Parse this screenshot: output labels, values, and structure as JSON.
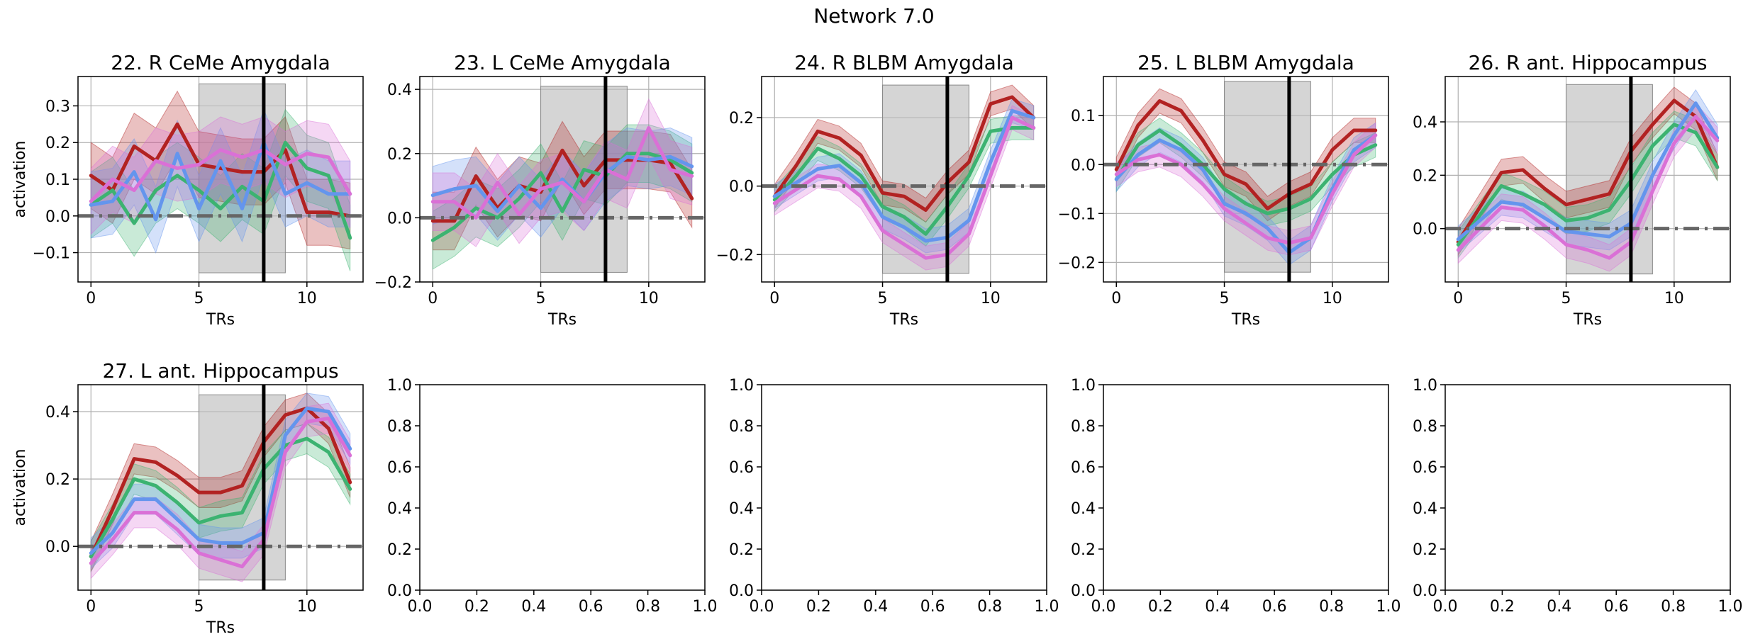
{
  "figure": {
    "title": "Network 7.0",
    "colors": {
      "series": [
        "#b22222",
        "#3cb371",
        "#6495ed",
        "#da70d6"
      ],
      "stim_shade": "#bfbfbf",
      "zero_line": "#666666",
      "marker_line": "#000000",
      "grid": "#b0b0b0"
    }
  },
  "chart_data": [
    {
      "type": "line",
      "title": "22. R CeMe Amygdala",
      "xlabel": "TRs",
      "ylabel": "activation",
      "xlim": [
        -0.6,
        12.6
      ],
      "ylim": [
        -0.18,
        0.38
      ],
      "xticks": [
        0,
        5,
        10
      ],
      "yticks": [
        -0.1,
        0.0,
        0.1,
        0.2,
        0.3
      ],
      "ytick_labels": [
        "−0.1",
        "0.0",
        "0.1",
        "0.2",
        "0.3"
      ],
      "shade_x": [
        5,
        9
      ],
      "shade_y": [
        -0.155,
        0.36
      ],
      "marker_x": 8,
      "zero_y": 0,
      "grid": true,
      "x": [
        0,
        1,
        2,
        3,
        4,
        5,
        6,
        7,
        8,
        9,
        10,
        11,
        12
      ],
      "series": [
        {
          "values": [
            0.11,
            0.07,
            0.19,
            0.15,
            0.25,
            0.14,
            0.13,
            0.12,
            0.12,
            0.18,
            0.01,
            0.01,
            0.0
          ],
          "band": 0.09
        },
        {
          "values": [
            0.03,
            0.07,
            -0.02,
            0.07,
            0.11,
            0.07,
            0.02,
            0.08,
            0.04,
            0.2,
            0.13,
            0.11,
            -0.06
          ],
          "band": 0.09
        },
        {
          "values": [
            0.03,
            0.04,
            0.12,
            -0.01,
            0.17,
            0.02,
            0.15,
            0.02,
            0.2,
            0.06,
            0.09,
            0.06,
            0.06
          ],
          "band": 0.09
        },
        {
          "values": [
            0.04,
            0.1,
            0.07,
            0.15,
            0.13,
            0.14,
            0.18,
            0.16,
            0.18,
            0.14,
            0.17,
            0.16,
            0.06
          ],
          "band": 0.09
        }
      ]
    },
    {
      "type": "line",
      "title": "23. L CeMe Amygdala",
      "xlabel": "TRs",
      "ylabel": "",
      "xlim": [
        -0.6,
        12.6
      ],
      "ylim": [
        -0.2,
        0.44
      ],
      "xticks": [
        0,
        5,
        10
      ],
      "yticks": [
        -0.2,
        0.0,
        0.2,
        0.4
      ],
      "ytick_labels": [
        "−0.2",
        "0.0",
        "0.2",
        "0.4"
      ],
      "shade_x": [
        5,
        9
      ],
      "shade_y": [
        -0.17,
        0.41
      ],
      "marker_x": 8,
      "zero_y": 0,
      "grid": true,
      "x": [
        0,
        1,
        2,
        3,
        4,
        5,
        6,
        7,
        8,
        9,
        10,
        11,
        12
      ],
      "series": [
        {
          "values": [
            -0.01,
            -0.01,
            0.13,
            0.03,
            0.1,
            0.08,
            0.21,
            0.1,
            0.18,
            0.18,
            0.18,
            0.17,
            0.06
          ],
          "band": 0.09
        },
        {
          "values": [
            -0.07,
            -0.03,
            0.03,
            0.0,
            0.06,
            0.14,
            0.02,
            0.15,
            0.13,
            0.2,
            0.2,
            0.18,
            0.14
          ],
          "band": 0.09
        },
        {
          "values": [
            0.07,
            0.09,
            0.1,
            0.02,
            0.1,
            0.03,
            0.12,
            0.05,
            0.14,
            0.19,
            0.18,
            0.19,
            0.16
          ],
          "band": 0.09
        },
        {
          "values": [
            0.05,
            0.05,
            0.0,
            0.11,
            0.01,
            0.09,
            0.11,
            0.05,
            0.15,
            0.12,
            0.28,
            0.15,
            0.13
          ],
          "band": 0.09
        }
      ]
    },
    {
      "type": "line",
      "title": "24. R BLBM Amygdala",
      "xlabel": "TRs",
      "ylabel": "",
      "xlim": [
        -0.6,
        12.6
      ],
      "ylim": [
        -0.28,
        0.32
      ],
      "xticks": [
        0,
        5,
        10
      ],
      "yticks": [
        -0.2,
        0.0,
        0.2
      ],
      "ytick_labels": [
        "−0.2",
        "0.0",
        "0.2"
      ],
      "shade_x": [
        5,
        9
      ],
      "shade_y": [
        -0.255,
        0.295
      ],
      "marker_x": 8,
      "zero_y": 0,
      "grid": true,
      "x": [
        0,
        1,
        2,
        3,
        4,
        5,
        6,
        7,
        8,
        9,
        10,
        11,
        12
      ],
      "series": [
        {
          "values": [
            -0.03,
            0.06,
            0.16,
            0.14,
            0.09,
            -0.02,
            -0.03,
            -0.07,
            0.01,
            0.07,
            0.24,
            0.26,
            0.2
          ],
          "band": 0.035
        },
        {
          "values": [
            -0.04,
            0.03,
            0.11,
            0.08,
            0.03,
            -0.06,
            -0.09,
            -0.14,
            -0.06,
            0.03,
            0.16,
            0.17,
            0.17
          ],
          "band": 0.035
        },
        {
          "values": [
            -0.03,
            0.01,
            0.05,
            0.06,
            0.01,
            -0.09,
            -0.12,
            -0.16,
            -0.15,
            -0.1,
            0.07,
            0.22,
            0.2
          ],
          "band": 0.035
        },
        {
          "values": [
            -0.05,
            -0.01,
            0.03,
            0.02,
            -0.03,
            -0.13,
            -0.17,
            -0.21,
            -0.2,
            -0.14,
            0.03,
            0.2,
            0.17
          ],
          "band": 0.035
        }
      ]
    },
    {
      "type": "line",
      "title": "25. L BLBM Amygdala",
      "xlabel": "TRs",
      "ylabel": "",
      "xlim": [
        -0.6,
        12.6
      ],
      "ylim": [
        -0.24,
        0.18
      ],
      "xticks": [
        0,
        5,
        10
      ],
      "yticks": [
        -0.2,
        -0.1,
        0.0,
        0.1
      ],
      "ytick_labels": [
        "−0.2",
        "−0.1",
        "0.0",
        "0.1"
      ],
      "shade_x": [
        5,
        9
      ],
      "shade_y": [
        -0.22,
        0.17
      ],
      "marker_x": 8,
      "zero_y": 0,
      "grid": true,
      "x": [
        0,
        1,
        2,
        3,
        4,
        5,
        6,
        7,
        8,
        9,
        10,
        11,
        12
      ],
      "series": [
        {
          "values": [
            -0.01,
            0.08,
            0.13,
            0.11,
            0.05,
            -0.02,
            -0.04,
            -0.09,
            -0.06,
            -0.04,
            0.03,
            0.07,
            0.07
          ],
          "band": 0.025
        },
        {
          "values": [
            -0.03,
            0.04,
            0.07,
            0.04,
            0.0,
            -0.05,
            -0.08,
            -0.1,
            -0.09,
            -0.07,
            -0.02,
            0.02,
            0.04
          ],
          "band": 0.025
        },
        {
          "values": [
            -0.03,
            0.02,
            0.05,
            0.03,
            -0.01,
            -0.08,
            -0.1,
            -0.13,
            -0.18,
            -0.15,
            -0.05,
            0.03,
            0.06
          ],
          "band": 0.025
        },
        {
          "values": [
            -0.02,
            0.01,
            0.02,
            0.0,
            -0.04,
            -0.09,
            -0.12,
            -0.15,
            -0.16,
            -0.15,
            -0.06,
            0.02,
            0.06
          ],
          "band": 0.025
        }
      ]
    },
    {
      "type": "line",
      "title": "26. R ant. Hippocampus",
      "xlabel": "TRs",
      "ylabel": "",
      "xlim": [
        -0.6,
        12.6
      ],
      "ylim": [
        -0.2,
        0.57
      ],
      "xticks": [
        0,
        5,
        10
      ],
      "yticks": [
        0.0,
        0.2,
        0.4
      ],
      "ytick_labels": [
        "0.0",
        "0.2",
        "0.4"
      ],
      "shade_x": [
        5,
        9
      ],
      "shade_y": [
        -0.17,
        0.54
      ],
      "marker_x": 8,
      "zero_y": 0,
      "grid": true,
      "x": [
        0,
        1,
        2,
        3,
        4,
        5,
        6,
        7,
        8,
        9,
        10,
        11,
        12
      ],
      "series": [
        {
          "values": [
            -0.05,
            0.08,
            0.21,
            0.22,
            0.15,
            0.09,
            0.11,
            0.13,
            0.29,
            0.39,
            0.48,
            0.42,
            0.23
          ],
          "band": 0.05
        },
        {
          "values": [
            -0.06,
            0.05,
            0.16,
            0.13,
            0.09,
            0.03,
            0.04,
            0.07,
            0.18,
            0.31,
            0.39,
            0.36,
            0.23
          ],
          "band": 0.05
        },
        {
          "values": [
            -0.04,
            0.03,
            0.1,
            0.09,
            0.04,
            -0.01,
            -0.02,
            -0.03,
            0.02,
            0.2,
            0.35,
            0.47,
            0.34
          ],
          "band": 0.05
        },
        {
          "values": [
            -0.08,
            0.0,
            0.08,
            0.07,
            0.01,
            -0.06,
            -0.08,
            -0.11,
            -0.05,
            0.14,
            0.32,
            0.42,
            0.33
          ],
          "band": 0.05
        }
      ]
    },
    {
      "type": "line",
      "title": "27. L ant. Hippocampus",
      "xlabel": "TRs",
      "ylabel": "activation",
      "xlim": [
        -0.6,
        12.6
      ],
      "ylim": [
        -0.13,
        0.48
      ],
      "xticks": [
        0,
        5,
        10
      ],
      "yticks": [
        0.0,
        0.2,
        0.4
      ],
      "ytick_labels": [
        "0.0",
        "0.2",
        "0.4"
      ],
      "shade_x": [
        5,
        9
      ],
      "shade_y": [
        -0.1,
        0.45
      ],
      "marker_x": 8,
      "zero_y": 0,
      "grid": true,
      "x": [
        0,
        1,
        2,
        3,
        4,
        5,
        6,
        7,
        8,
        9,
        10,
        11,
        12
      ],
      "series": [
        {
          "values": [
            -0.03,
            0.11,
            0.26,
            0.25,
            0.21,
            0.16,
            0.16,
            0.18,
            0.31,
            0.39,
            0.41,
            0.35,
            0.19
          ],
          "band": 0.045
        },
        {
          "values": [
            -0.03,
            0.08,
            0.2,
            0.18,
            0.13,
            0.07,
            0.09,
            0.1,
            0.23,
            0.3,
            0.32,
            0.28,
            0.17
          ],
          "band": 0.045
        },
        {
          "values": [
            -0.02,
            0.04,
            0.14,
            0.14,
            0.08,
            0.02,
            0.01,
            0.01,
            0.04,
            0.33,
            0.41,
            0.4,
            0.29
          ],
          "band": 0.045
        },
        {
          "values": [
            -0.05,
            0.02,
            0.1,
            0.1,
            0.05,
            -0.02,
            -0.04,
            -0.06,
            0.02,
            0.28,
            0.37,
            0.38,
            0.27
          ],
          "band": 0.045
        }
      ]
    },
    {
      "type": "line",
      "title": "",
      "xlabel": "",
      "ylabel": "",
      "xlim": [
        0,
        1
      ],
      "ylim": [
        0,
        1
      ],
      "xticks": [
        0.0,
        0.2,
        0.4,
        0.6,
        0.8,
        1.0
      ],
      "xtick_labels": [
        "0.0",
        "0.2",
        "0.4",
        "0.6",
        "0.8",
        "1.0"
      ],
      "yticks": [
        0.0,
        0.2,
        0.4,
        0.6,
        0.8,
        1.0
      ],
      "ytick_labels": [
        "0.0",
        "0.2",
        "0.4",
        "0.6",
        "0.8",
        "1.0"
      ],
      "grid": false,
      "series": []
    },
    {
      "type": "line",
      "title": "",
      "xlabel": "",
      "ylabel": "",
      "xlim": [
        0,
        1
      ],
      "ylim": [
        0,
        1
      ],
      "xticks": [
        0.0,
        0.2,
        0.4,
        0.6,
        0.8,
        1.0
      ],
      "xtick_labels": [
        "0.0",
        "0.2",
        "0.4",
        "0.6",
        "0.8",
        "1.0"
      ],
      "yticks": [
        0.0,
        0.2,
        0.4,
        0.6,
        0.8,
        1.0
      ],
      "ytick_labels": [
        "0.0",
        "0.2",
        "0.4",
        "0.6",
        "0.8",
        "1.0"
      ],
      "grid": false,
      "series": []
    },
    {
      "type": "line",
      "title": "",
      "xlabel": "",
      "ylabel": "",
      "xlim": [
        0,
        1
      ],
      "ylim": [
        0,
        1
      ],
      "xticks": [
        0.0,
        0.2,
        0.4,
        0.6,
        0.8,
        1.0
      ],
      "xtick_labels": [
        "0.0",
        "0.2",
        "0.4",
        "0.6",
        "0.8",
        "1.0"
      ],
      "yticks": [
        0.0,
        0.2,
        0.4,
        0.6,
        0.8,
        1.0
      ],
      "ytick_labels": [
        "0.0",
        "0.2",
        "0.4",
        "0.6",
        "0.8",
        "1.0"
      ],
      "grid": false,
      "series": []
    },
    {
      "type": "line",
      "title": "",
      "xlabel": "",
      "ylabel": "",
      "xlim": [
        0,
        1
      ],
      "ylim": [
        0,
        1
      ],
      "xticks": [
        0.0,
        0.2,
        0.4,
        0.6,
        0.8,
        1.0
      ],
      "xtick_labels": [
        "0.0",
        "0.2",
        "0.4",
        "0.6",
        "0.8",
        "1.0"
      ],
      "yticks": [
        0.0,
        0.2,
        0.4,
        0.6,
        0.8,
        1.0
      ],
      "ytick_labels": [
        "0.0",
        "0.2",
        "0.4",
        "0.6",
        "0.8",
        "1.0"
      ],
      "grid": false,
      "series": []
    }
  ]
}
